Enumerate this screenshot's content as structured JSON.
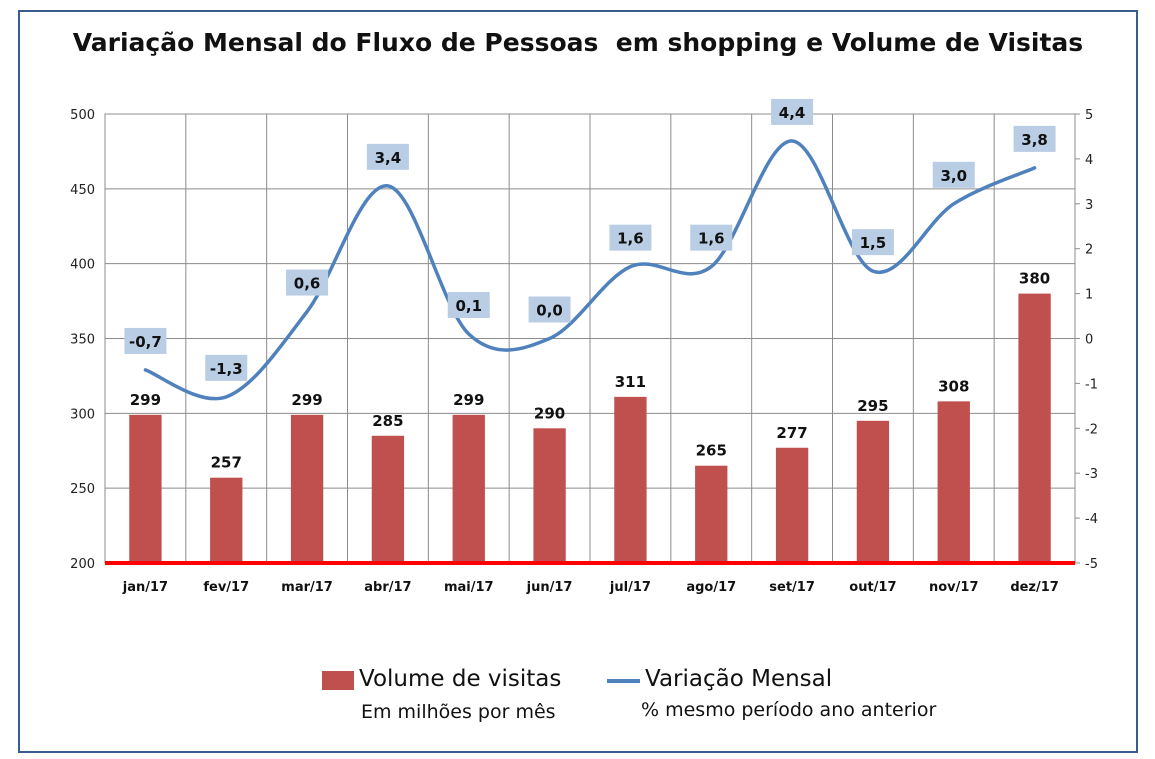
{
  "chart_data": {
    "type": "bar",
    "title": "Variação Mensal do Fluxo de Pessoas  em shopping e Volume de Visitas",
    "categories": [
      "jan/17",
      "fev/17",
      "mar/17",
      "abr/17",
      "mai/17",
      "jun/17",
      "jul/17",
      "ago/17",
      "set/17",
      "out/17",
      "nov/17",
      "dez/17"
    ],
    "series": [
      {
        "name": "Volume de visitas",
        "type": "bar",
        "axis": "left",
        "color": "#c0504d",
        "values": [
          299,
          257,
          299,
          285,
          299,
          290,
          311,
          265,
          277,
          295,
          308,
          380
        ],
        "labels": [
          "299",
          "257",
          "299",
          "285",
          "299",
          "290",
          "311",
          "265",
          "277",
          "295",
          "308",
          "380"
        ]
      },
      {
        "name": "Variação Mensal",
        "type": "line",
        "axis": "right",
        "color": "#4f81bd",
        "values": [
          -0.7,
          -1.3,
          0.6,
          3.4,
          0.1,
          0.0,
          1.6,
          1.6,
          4.4,
          1.5,
          3.0,
          3.8
        ],
        "labels": [
          "-0,7",
          "-1,3",
          "0,6",
          "3,4",
          "0,1",
          "0,0",
          "1,6",
          "1,6",
          "4,4",
          "1,5",
          "3,0",
          "3,8"
        ]
      }
    ],
    "y_left": {
      "ylim": [
        200,
        500
      ],
      "ticks": [
        "200",
        "250",
        "300",
        "350",
        "400",
        "450",
        "500"
      ]
    },
    "y_right": {
      "ylim": [
        -5,
        5
      ],
      "ticks": [
        "-5",
        "-4",
        "-3",
        "-2",
        "-1",
        "0",
        "1",
        "2",
        "3",
        "4",
        "5"
      ]
    },
    "baseline_color": "#ff0000",
    "grid": true,
    "legend": {
      "position": "bottom",
      "items": [
        {
          "label": "Volume de visitas",
          "sublabel": "Em milhões por mês"
        },
        {
          "label": "Variação Mensal",
          "sublabel": "% mesmo período ano anterior"
        }
      ]
    }
  }
}
